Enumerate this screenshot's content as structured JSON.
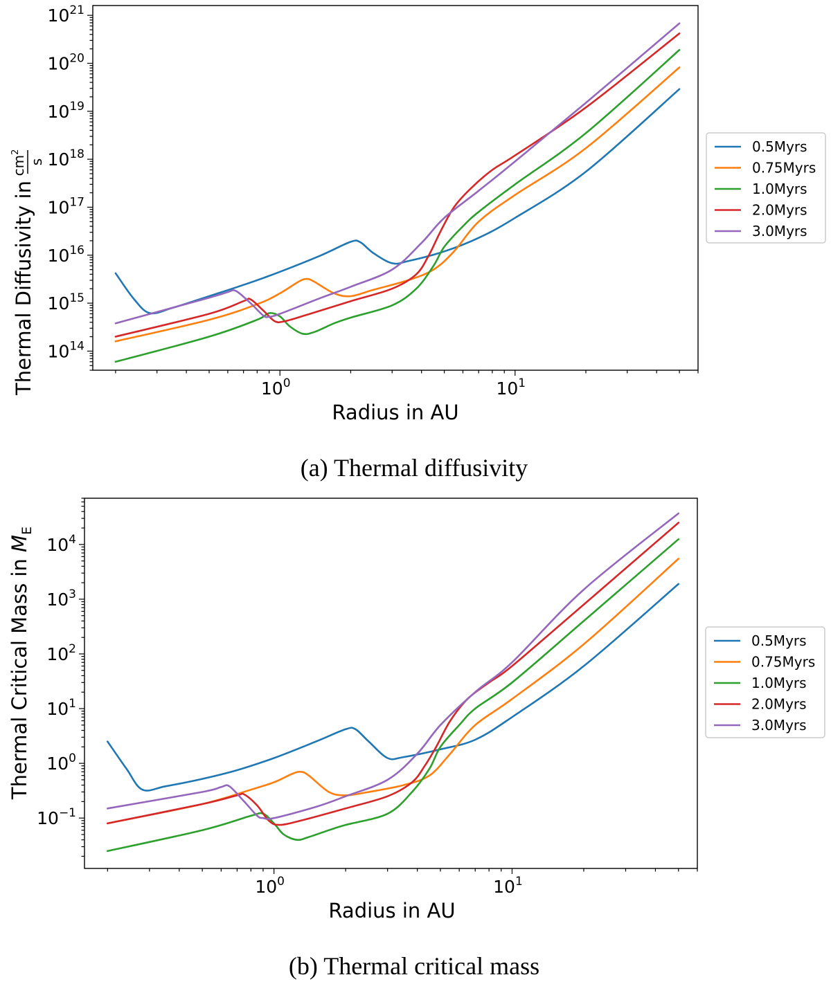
{
  "colors": {
    "0.5Myrs": "#1f77b4",
    "0.75Myrs": "#ff7f0e",
    "1.0Myrs": "#2ca02c",
    "2.0Myrs": "#d62728",
    "3.0Myrs": "#9467bd"
  },
  "chart_data": [
    {
      "type": "line",
      "caption": "(a) Thermal diffusivity",
      "xlabel": "Radius in AU",
      "ylabel_prefix": "Thermal Diffusivity in",
      "ylabel_unit_num": "cm",
      "ylabel_unit_num_exp": "2",
      "ylabel_unit_den": "s",
      "xscale": "log",
      "yscale": "log",
      "xlim": [
        0.16,
        60
      ],
      "ylim": [
        40000000000000.0,
        1.6e+21
      ],
      "x_ticks": [
        {
          "value": 1,
          "base": "10",
          "exp": "0"
        },
        {
          "value": 10,
          "base": "10",
          "exp": "1"
        }
      ],
      "y_ticks": [
        {
          "value": 100000000000000.0,
          "base": "10",
          "exp": "14"
        },
        {
          "value": 1000000000000000.0,
          "base": "10",
          "exp": "15"
        },
        {
          "value": 1e+16,
          "base": "10",
          "exp": "16"
        },
        {
          "value": 1e+17,
          "base": "10",
          "exp": "17"
        },
        {
          "value": 1e+18,
          "base": "10",
          "exp": "18"
        },
        {
          "value": 1e+19,
          "base": "10",
          "exp": "19"
        },
        {
          "value": 1e+20,
          "base": "10",
          "exp": "20"
        },
        {
          "value": 1e+21,
          "base": "10",
          "exp": "21"
        }
      ],
      "legend": {
        "placement": "right",
        "entries": [
          "0.5Myrs",
          "0.75Myrs",
          "1.0Myrs",
          "2.0Myrs",
          "3.0Myrs"
        ]
      },
      "series": [
        {
          "name": "0.5Myrs",
          "x": [
            0.2,
            0.24,
            0.28,
            0.35,
            0.5,
            0.7,
            1.0,
            1.5,
            2.0,
            2.2,
            2.5,
            3.0,
            3.5,
            5.0,
            7.0,
            10,
            20,
            50
          ],
          "y": [
            4200000000000000.0,
            1200000000000000.0,
            620000000000000.0,
            800000000000000.0,
            1400000000000000.0,
            2400000000000000.0,
            4500000000000000.0,
            1e+16,
            1.9e+16,
            1.85e+16,
            1.1e+16,
            6800000000000000.0,
            7500000000000000.0,
            1.2e+16,
            2.3e+16,
            6e+16,
            5.5e+17,
            2.9e+19
          ]
        },
        {
          "name": "0.75Myrs",
          "x": [
            0.2,
            0.5,
            0.8,
            1.0,
            1.2,
            1.3,
            1.4,
            1.7,
            2.0,
            2.5,
            3.5,
            4.5,
            5.5,
            7.0,
            10,
            20,
            50
          ],
          "y": [
            160000000000000.0,
            450000000000000.0,
            950000000000000.0,
            1600000000000000.0,
            2800000000000000.0,
            3200000000000000.0,
            2800000000000000.0,
            1600000000000000.0,
            1400000000000000.0,
            1900000000000000.0,
            3000000000000000.0,
            5000000000000000.0,
            1.2e+16,
            5e+16,
            1.8e+17,
            1.7e+18,
            8.2e+19
          ]
        },
        {
          "name": "1.0Myrs",
          "x": [
            0.2,
            0.5,
            0.8,
            0.9,
            1.0,
            1.1,
            1.25,
            1.4,
            1.7,
            2.0,
            3.0,
            3.8,
            4.5,
            5.0,
            6.0,
            7.0,
            10,
            20,
            50
          ],
          "y": [
            60000000000000.0,
            200000000000000.0,
            450000000000000.0,
            620000000000000.0,
            530000000000000.0,
            330000000000000.0,
            230000000000000.0,
            250000000000000.0,
            380000000000000.0,
            500000000000000.0,
            900000000000000.0,
            2000000000000000.0,
            6000000000000000.0,
            1.5e+16,
            4e+16,
            8e+16,
            3e+17,
            3.5e+18,
            1.9e+20
          ]
        },
        {
          "name": "2.0Myrs",
          "x": [
            0.2,
            0.5,
            0.7,
            0.75,
            0.85,
            0.95,
            1.05,
            1.3,
            2.0,
            3.0,
            3.8,
            4.3,
            4.8,
            5.5,
            6.5,
            8.0,
            10,
            20,
            50
          ],
          "y": [
            200000000000000.0,
            600000000000000.0,
            1100000000000000.0,
            1200000000000000.0,
            700000000000000.0,
            420000000000000.0,
            420000000000000.0,
            570000000000000.0,
            1100000000000000.0,
            2000000000000000.0,
            4000000000000000.0,
            1e+16,
            3e+16,
            1e+17,
            2.5e+17,
            6e+17,
            1.2e+18,
            1.2e+19,
            4.2e+20
          ]
        },
        {
          "name": "3.0Myrs",
          "x": [
            0.2,
            0.5,
            0.6,
            0.65,
            0.75,
            0.85,
            0.9,
            1.0,
            1.5,
            2.0,
            3.0,
            4.0,
            5.0,
            7.0,
            10,
            20,
            50
          ],
          "y": [
            380000000000000.0,
            1300000000000000.0,
            1700000000000000.0,
            1800000000000000.0,
            1000000000000000.0,
            550000000000000.0,
            520000000000000.0,
            600000000000000.0,
            1300000000000000.0,
            2200000000000000.0,
            5000000000000000.0,
            1.8e+16,
            6e+16,
            2.2e+17,
            9e+17,
            1.5e+19,
            6.8e+20
          ]
        }
      ]
    },
    {
      "type": "line",
      "caption": "(b) Thermal critical mass",
      "xlabel": "Radius in AU",
      "ylabel_prefix": "Thermal Critical Mass in",
      "ylabel_sym": "M",
      "ylabel_sub": "E",
      "xscale": "log",
      "yscale": "log",
      "xlim": [
        0.16,
        60
      ],
      "ylim": [
        0.012,
        70000
      ],
      "x_ticks": [
        {
          "value": 1,
          "base": "10",
          "exp": "0"
        },
        {
          "value": 10,
          "base": "10",
          "exp": "1"
        }
      ],
      "y_ticks": [
        {
          "value": 0.1,
          "base": "10",
          "exp": "−1"
        },
        {
          "value": 1,
          "base": "10",
          "exp": "0"
        },
        {
          "value": 10,
          "base": "10",
          "exp": "1"
        },
        {
          "value": 100,
          "base": "10",
          "exp": "2"
        },
        {
          "value": 1000,
          "base": "10",
          "exp": "3"
        },
        {
          "value": 10000,
          "base": "10",
          "exp": "4"
        }
      ],
      "legend": {
        "placement": "right",
        "entries": [
          "0.5Myrs",
          "0.75Myrs",
          "1.0Myrs",
          "2.0Myrs",
          "3.0Myrs"
        ]
      },
      "series": [
        {
          "name": "0.5Myrs",
          "x": [
            0.2,
            0.24,
            0.28,
            0.35,
            0.5,
            0.7,
            1.0,
            1.5,
            2.0,
            2.2,
            2.5,
            3.0,
            3.5,
            5.0,
            7.0,
            10,
            20,
            50
          ],
          "y": [
            2.5,
            0.8,
            0.33,
            0.38,
            0.52,
            0.75,
            1.25,
            2.5,
            4.2,
            4.2,
            2.5,
            1.25,
            1.3,
            1.8,
            2.7,
            7,
            60,
            1900
          ]
        },
        {
          "name": "0.75Myrs",
          "x": [
            0.2,
            0.5,
            0.8,
            1.0,
            1.2,
            1.3,
            1.4,
            1.7,
            2.0,
            2.5,
            3.5,
            4.5,
            5.5,
            7.0,
            10,
            20,
            50
          ],
          "y": [
            0.08,
            0.18,
            0.33,
            0.45,
            0.65,
            0.7,
            0.6,
            0.3,
            0.26,
            0.3,
            0.4,
            0.6,
            1.5,
            5,
            15,
            150,
            5500
          ]
        },
        {
          "name": "1.0Myrs",
          "x": [
            0.2,
            0.5,
            0.8,
            0.9,
            1.0,
            1.1,
            1.25,
            1.4,
            1.7,
            2.0,
            3.0,
            3.8,
            4.5,
            5.0,
            6.0,
            7.0,
            10,
            20,
            50
          ],
          "y": [
            0.025,
            0.06,
            0.11,
            0.12,
            0.08,
            0.05,
            0.04,
            0.045,
            0.06,
            0.075,
            0.12,
            0.3,
            0.8,
            2,
            5,
            10,
            30,
            400,
            12500
          ]
        },
        {
          "name": "2.0Myrs",
          "x": [
            0.2,
            0.5,
            0.7,
            0.75,
            0.85,
            0.95,
            1.05,
            1.3,
            2.0,
            3.0,
            3.8,
            4.3,
            4.8,
            5.5,
            6.5,
            8.0,
            10,
            20,
            50
          ],
          "y": [
            0.08,
            0.18,
            0.26,
            0.27,
            0.17,
            0.09,
            0.075,
            0.09,
            0.15,
            0.25,
            0.45,
            0.9,
            2,
            6,
            15,
            30,
            60,
            800,
            25000
          ]
        },
        {
          "name": "3.0Myrs",
          "x": [
            0.2,
            0.5,
            0.6,
            0.65,
            0.75,
            0.85,
            0.9,
            1.0,
            1.5,
            2.0,
            3.0,
            4.0,
            5.0,
            7.0,
            10,
            20,
            50
          ],
          "y": [
            0.15,
            0.3,
            0.37,
            0.38,
            0.2,
            0.11,
            0.1,
            0.1,
            0.16,
            0.25,
            0.5,
            1.5,
            5,
            20,
            70,
            1500,
            37000
          ]
        }
      ]
    }
  ]
}
